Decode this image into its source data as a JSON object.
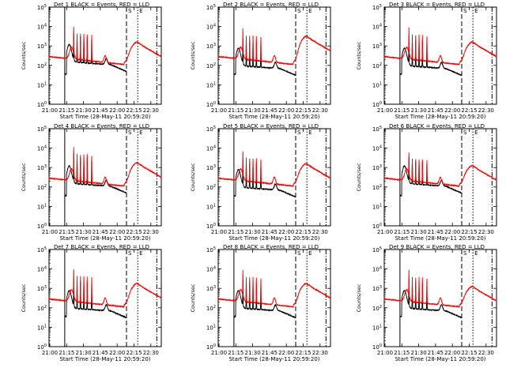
{
  "chart_data": [
    {
      "type": "line",
      "title": "Det 1 BLACK = Events, RED = LLD",
      "ylabel": "Counts/sec",
      "xlabel": "Start Time (28-May-11 20:59:20)",
      "x_ticks": [
        "21:00",
        "21:15",
        "21:30",
        "21:45",
        "22:00",
        "22:15",
        "22:30"
      ],
      "x_range_minutes": [
        0,
        100
      ],
      "y_scale": "log",
      "y_range": [
        1,
        100000
      ],
      "y_ticks": [
        "10^0",
        "10^1",
        "10^2",
        "10^3",
        "10^4",
        "10^5"
      ],
      "markers": [
        {
          "label": "",
          "t": 14,
          "style": "solid"
        },
        {
          "label": "S",
          "t": 69,
          "style": "dashed"
        },
        {
          "label": "",
          "t": 96,
          "style": "dashdot"
        },
        {
          "label": "E",
          "t": 79,
          "style": "dotted"
        }
      ],
      "series": [
        {
          "name": "Events",
          "color": "#000000",
          "level": 0.55,
          "spike": 1.35,
          "peak": 3.0
        },
        {
          "name": "LLD",
          "color": "#ff0000",
          "level": 0.0,
          "spike": 1.35,
          "peak": 3.0
        }
      ]
    },
    {
      "type": "line",
      "title": "Det 2 BLACK = Events, RED = LLD",
      "ylabel": "Counts/sec",
      "xlabel": "Start Time (28-May-11 20:59:20)",
      "x_ticks": [
        "21:00",
        "21:15",
        "21:30",
        "21:45",
        "22:00",
        "22:15",
        "22:30"
      ],
      "x_range_minutes": [
        0,
        100
      ],
      "y_scale": "log",
      "y_range": [
        1,
        100000
      ],
      "y_ticks": [
        "10^0",
        "10^1",
        "10^2",
        "10^3",
        "10^4",
        "10^5"
      ],
      "markers": [
        {
          "label": "",
          "t": 14,
          "style": "solid"
        },
        {
          "label": "S",
          "t": 69,
          "style": "dashed"
        },
        {
          "label": "",
          "t": 96,
          "style": "dashdot"
        },
        {
          "label": "E",
          "t": 79,
          "style": "dotted"
        }
      ],
      "series": [
        {
          "name": "Events",
          "color": "#000000",
          "level": 0.35,
          "spike": 1.3,
          "peak": 3.3
        },
        {
          "name": "LLD",
          "color": "#ff0000",
          "level": 0.0,
          "spike": 1.25,
          "peak": 3.3
        }
      ]
    },
    {
      "type": "line",
      "title": "Det 3 BLACK = Events, RED = LLD",
      "ylabel": "Counts/sec",
      "xlabel": "Start Time (28-May-11 20:59:20)",
      "x_ticks": [
        "21:00",
        "21:15",
        "21:30",
        "21:45",
        "22:00",
        "22:15",
        "22:30"
      ],
      "x_range_minutes": [
        0,
        100
      ],
      "y_scale": "log",
      "y_range": [
        1,
        100000
      ],
      "y_ticks": [
        "10^0",
        "10^1",
        "10^2",
        "10^3",
        "10^4",
        "10^5"
      ],
      "markers": [
        {
          "label": "",
          "t": 14,
          "style": "solid"
        },
        {
          "label": "S",
          "t": 69,
          "style": "dashed"
        },
        {
          "label": "",
          "t": 96,
          "style": "dashdot"
        },
        {
          "label": "E",
          "t": 79,
          "style": "dotted"
        }
      ],
      "series": [
        {
          "name": "Events",
          "color": "#000000",
          "level": 0.35,
          "spike": 1.35,
          "peak": 3.0
        },
        {
          "name": "LLD",
          "color": "#ff0000",
          "level": 0.0,
          "spike": 1.3,
          "peak": 3.0
        }
      ]
    },
    {
      "type": "line",
      "title": "Det 4 BLACK = Events, RED = LLD",
      "ylabel": "Counts/sec",
      "xlabel": "Start Time (28-May-11 20:59:20)",
      "x_ticks": [
        "21:00",
        "21:15",
        "21:30",
        "21:45",
        "22:00",
        "22:15",
        "22:30"
      ],
      "x_range_minutes": [
        0,
        100
      ],
      "y_scale": "log",
      "y_range": [
        1,
        100000
      ],
      "y_ticks": [
        "10^0",
        "10^1",
        "10^2",
        "10^3",
        "10^4",
        "10^5"
      ],
      "markers": [
        {
          "label": "",
          "t": 14,
          "style": "solid"
        },
        {
          "label": "S",
          "t": 69,
          "style": "dashed"
        },
        {
          "label": "",
          "t": 96,
          "style": "dashdot"
        },
        {
          "label": "E",
          "t": 79,
          "style": "dotted"
        }
      ],
      "series": [
        {
          "name": "Events",
          "color": "#000000",
          "level": 0.55,
          "spike": 1.4,
          "peak": 3.05
        },
        {
          "name": "LLD",
          "color": "#ff0000",
          "level": 0.0,
          "spike": 1.4,
          "peak": 3.05
        }
      ]
    },
    {
      "type": "line",
      "title": "Det 5 BLACK = Events, RED = LLD",
      "ylabel": "Counts/sec",
      "xlabel": "Start Time (28-May-11 20:59:20)",
      "x_ticks": [
        "21:00",
        "21:15",
        "21:30",
        "21:45",
        "22:00",
        "22:15",
        "22:30"
      ],
      "x_range_minutes": [
        0,
        100
      ],
      "y_scale": "log",
      "y_range": [
        1,
        100000
      ],
      "y_ticks": [
        "10^0",
        "10^1",
        "10^2",
        "10^3",
        "10^4",
        "10^5"
      ],
      "markers": [
        {
          "label": "",
          "t": 14,
          "style": "solid"
        },
        {
          "label": "S",
          "t": 69,
          "style": "dashed"
        },
        {
          "label": "",
          "t": 96,
          "style": "dashdot"
        },
        {
          "label": "E",
          "t": 79,
          "style": "dotted"
        }
      ],
      "series": [
        {
          "name": "Events",
          "color": "#000000",
          "level": 0.35,
          "spike": 1.3,
          "peak": 3.0
        },
        {
          "name": "LLD",
          "color": "#ff0000",
          "level": 0.0,
          "spike": 1.2,
          "peak": 3.0
        }
      ]
    },
    {
      "type": "line",
      "title": "Det 6 BLACK = Events, RED = LLD",
      "ylabel": "Counts/sec",
      "xlabel": "Start Time (28-May-11 20:59:20)",
      "x_ticks": [
        "21:00",
        "21:15",
        "21:30",
        "21:45",
        "22:00",
        "22:15",
        "22:30"
      ],
      "x_range_minutes": [
        0,
        100
      ],
      "y_scale": "log",
      "y_range": [
        1,
        100000
      ],
      "y_ticks": [
        "10^0",
        "10^1",
        "10^2",
        "10^3",
        "10^4",
        "10^5"
      ],
      "markers": [
        {
          "label": "",
          "t": 14,
          "style": "solid"
        },
        {
          "label": "S",
          "t": 69,
          "style": "dashed"
        },
        {
          "label": "",
          "t": 96,
          "style": "dashdot"
        },
        {
          "label": "E",
          "t": 79,
          "style": "dotted"
        }
      ],
      "series": [
        {
          "name": "Events",
          "color": "#000000",
          "level": 0.55,
          "spike": 1.2,
          "peak": 2.9
        },
        {
          "name": "LLD",
          "color": "#ff0000",
          "level": 0.0,
          "spike": 1.15,
          "peak": 2.9
        }
      ]
    },
    {
      "type": "line",
      "title": "Det 7 BLACK = Events, RED = LLD",
      "ylabel": "Counts/sec",
      "xlabel": "Start Time (28-May-11 20:59:20)",
      "x_ticks": [
        "21:00",
        "21:15",
        "21:30",
        "21:45",
        "22:00",
        "22:15",
        "22:30"
      ],
      "x_range_minutes": [
        0,
        100
      ],
      "y_scale": "log",
      "y_range": [
        1,
        100000
      ],
      "y_ticks": [
        "10^0",
        "10^1",
        "10^2",
        "10^3",
        "10^4",
        "10^5"
      ],
      "markers": [
        {
          "label": "",
          "t": 14,
          "style": "solid"
        },
        {
          "label": "S",
          "t": 69,
          "style": "dashed"
        },
        {
          "label": "",
          "t": 96,
          "style": "dashdot"
        },
        {
          "label": "E",
          "t": 79,
          "style": "dotted"
        }
      ],
      "series": [
        {
          "name": "Events",
          "color": "#000000",
          "level": 0.35,
          "spike": 1.4,
          "peak": 3.05
        },
        {
          "name": "LLD",
          "color": "#ff0000",
          "level": 0.0,
          "spike": 1.35,
          "peak": 3.05
        }
      ]
    },
    {
      "type": "line",
      "title": "Det 8 BLACK = Events, RED = LLD",
      "ylabel": "Counts/sec",
      "xlabel": "Start Time (28-May-11 20:59:20)",
      "x_ticks": [
        "21:00",
        "21:15",
        "21:30",
        "21:45",
        "22:00",
        "22:15",
        "22:30"
      ],
      "x_range_minutes": [
        0,
        100
      ],
      "y_scale": "log",
      "y_range": [
        1,
        100000
      ],
      "y_ticks": [
        "10^0",
        "10^1",
        "10^2",
        "10^3",
        "10^4",
        "10^5"
      ],
      "markers": [
        {
          "label": "",
          "t": 14,
          "style": "solid"
        },
        {
          "label": "S",
          "t": 69,
          "style": "dashed"
        },
        {
          "label": "",
          "t": 96,
          "style": "dashdot"
        },
        {
          "label": "E",
          "t": 79,
          "style": "dotted"
        }
      ],
      "series": [
        {
          "name": "Events",
          "color": "#000000",
          "level": 0.35,
          "spike": 1.35,
          "peak": 3.05
        },
        {
          "name": "LLD",
          "color": "#ff0000",
          "level": 0.0,
          "spike": 1.3,
          "peak": 3.05
        }
      ]
    },
    {
      "type": "line",
      "title": "Det 9 BLACK = Events, RED = LLD",
      "ylabel": "Counts/sec",
      "xlabel": "Start Time (28-May-11 20:59:20)",
      "x_ticks": [
        "21:00",
        "21:15",
        "21:30",
        "21:45",
        "22:00",
        "22:15",
        "22:30"
      ],
      "x_range_minutes": [
        0,
        100
      ],
      "y_scale": "log",
      "y_range": [
        1,
        100000
      ],
      "y_ticks": [
        "10^0",
        "10^1",
        "10^2",
        "10^3",
        "10^4",
        "10^5"
      ],
      "markers": [
        {
          "label": "",
          "t": 14,
          "style": "solid"
        },
        {
          "label": "S",
          "t": 69,
          "style": "dashed"
        },
        {
          "label": "",
          "t": 96,
          "style": "dashdot"
        },
        {
          "label": "E",
          "t": 79,
          "style": "dotted"
        }
      ],
      "series": [
        {
          "name": "Events",
          "color": "#000000",
          "level": 0.35,
          "spike": 1.35,
          "peak": 2.9
        },
        {
          "name": "LLD",
          "color": "#ff0000",
          "level": 0.0,
          "spike": 1.3,
          "peak": 2.9
        }
      ]
    }
  ]
}
